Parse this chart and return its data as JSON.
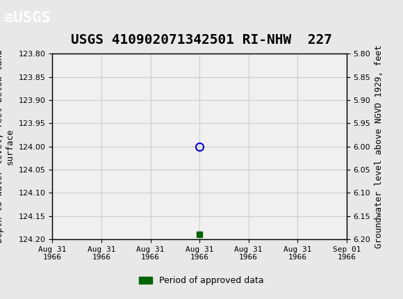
{
  "title": "USGS 410902071342501 RI-NHW  227",
  "ylabel_left": "Depth to water level, feet below land\nsurface",
  "ylabel_right": "Groundwater level above NGVD 1929, feet",
  "ylim_left": [
    123.8,
    124.2
  ],
  "ylim_right": [
    5.8,
    6.2
  ],
  "yticks_left": [
    123.8,
    123.85,
    123.9,
    123.95,
    124.0,
    124.05,
    124.1,
    124.15,
    124.2
  ],
  "yticks_right": [
    5.8,
    5.85,
    5.9,
    5.95,
    6.0,
    6.05,
    6.1,
    6.15,
    6.2
  ],
  "xlim": [
    0,
    6
  ],
  "xtick_labels": [
    "Aug 31\n1966",
    "Aug 31\n1966",
    "Aug 31\n1966",
    "Aug 31\n1966",
    "Aug 31\n1966",
    "Aug 31\n1966",
    "Sep 01\n1966"
  ],
  "xtick_positions": [
    0,
    1,
    2,
    3,
    4,
    5,
    6
  ],
  "data_point_x": 3,
  "data_point_y": 124.0,
  "green_marker_x": 3,
  "green_marker_y": 124.19,
  "header_color": "#1a6b3c",
  "header_text_color": "#ffffff",
  "grid_color": "#cccccc",
  "plot_bg_color": "#f0f0f0",
  "fig_bg_color": "#e8e8e8",
  "circle_color": "#0000cc",
  "green_color": "#006400",
  "legend_label": "Period of approved data",
  "title_fontsize": 14,
  "axis_label_fontsize": 9,
  "tick_fontsize": 8
}
